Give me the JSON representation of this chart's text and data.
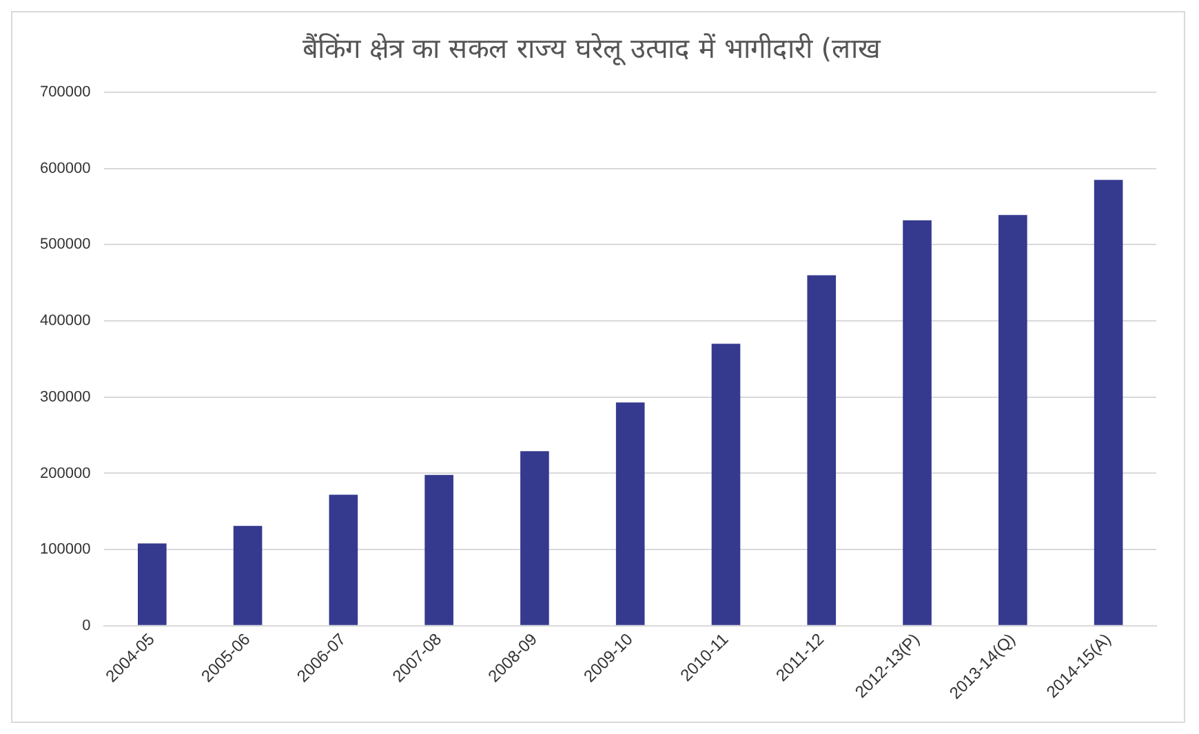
{
  "chart_data": {
    "type": "bar",
    "title": "बैंकिंग क्षेत्र का सकल राज्य घरेलू उत्पाद में भागीदारी (लाख",
    "categories": [
      "2004-05",
      "2005-06",
      "2006-07",
      "2007-08",
      "2008-09",
      "2009-10",
      "2010-11",
      "2011-12",
      "2012-13(P)",
      "2013-14(Q)",
      "2014-15(A)"
    ],
    "values": [
      108000,
      131000,
      172000,
      198000,
      229000,
      293000,
      370000,
      460000,
      532000,
      539000,
      585000
    ],
    "color": "#353a8f",
    "ylim": [
      0,
      700000
    ],
    "yticks": [
      0,
      100000,
      200000,
      300000,
      400000,
      500000,
      600000,
      700000
    ],
    "grid": "y",
    "legend": false
  }
}
